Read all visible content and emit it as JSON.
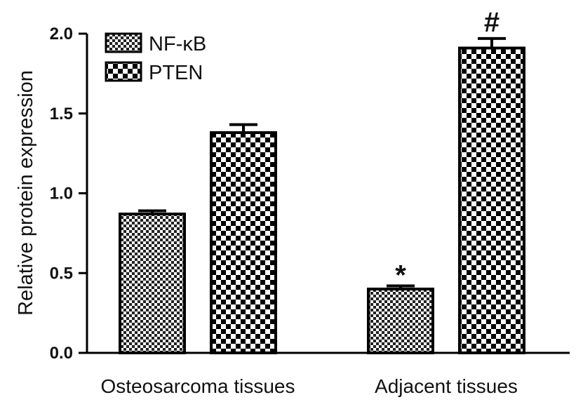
{
  "chart_data": {
    "type": "bar",
    "categories": [
      "Osteosarcoma tissues",
      "Adjacent tissues"
    ],
    "series": [
      {
        "name": "NF-κB",
        "values": [
          0.87,
          0.4
        ],
        "errors": [
          0.02,
          0.02
        ],
        "pattern": "fine-checker"
      },
      {
        "name": "PTEN",
        "values": [
          1.38,
          1.91
        ],
        "errors": [
          0.05,
          0.06
        ],
        "pattern": "coarse-checker"
      }
    ],
    "annotations": [
      {
        "series": 0,
        "category": 1,
        "text": "*"
      },
      {
        "series": 1,
        "category": 1,
        "text": "#"
      }
    ],
    "ylabel": "Relative protein expression",
    "xlabel": "",
    "ylim": [
      0,
      2.0
    ],
    "yticks": [
      "0.0",
      "0.5",
      "1.0",
      "1.5",
      "2.0"
    ],
    "legend_position": "top-left",
    "grid": false,
    "colors": {
      "ink": "#000000",
      "background": "#ffffff"
    }
  }
}
